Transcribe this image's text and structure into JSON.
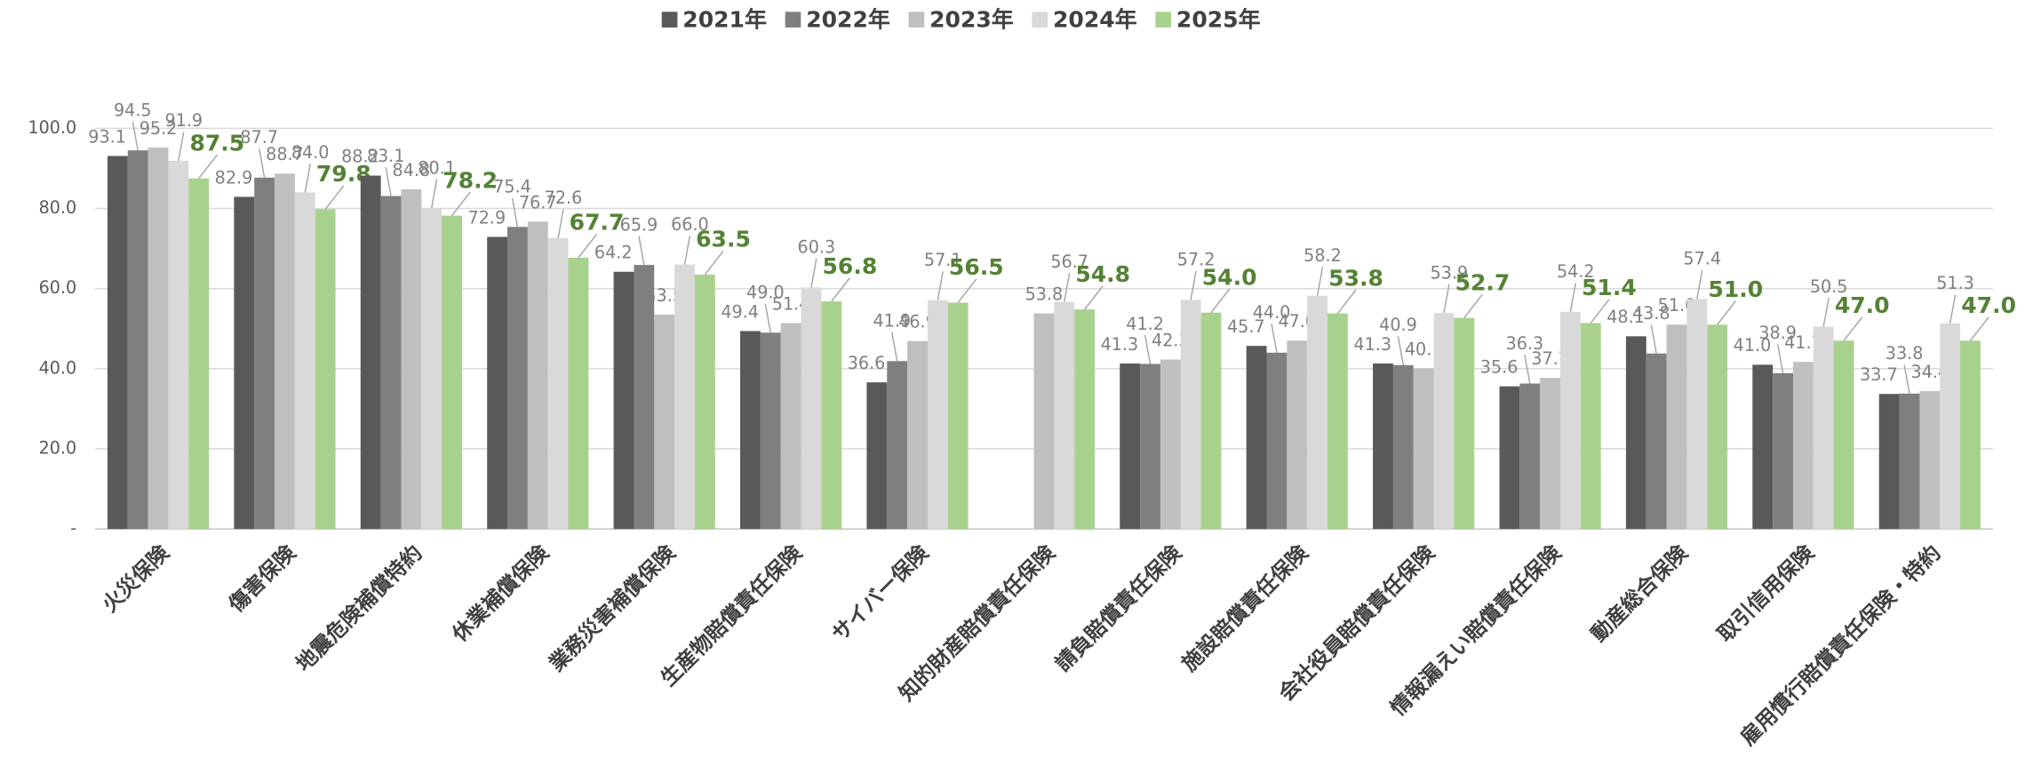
{
  "chart_data": {
    "type": "bar",
    "categories": [
      "火災保険",
      "傷害保険",
      "地震危険補償特約",
      "休業補償保険",
      "業務災害補償保険",
      "生産物賠償責任保険",
      "サイバー保険",
      "知的財産賠償責任保険",
      "請負賠償責任保険",
      "施設賠償責任保険",
      "会社役員賠償責任保険",
      "情報漏えい賠償責任保険",
      "動産総合保険",
      "取引信用保険",
      "雇用慣行賠償責任保険・特約"
    ],
    "series": [
      {
        "name": "2021年",
        "color": "#595959",
        "values": [
          93.1,
          82.9,
          88.2,
          72.9,
          64.2,
          49.4,
          36.6,
          null,
          41.3,
          45.7,
          41.3,
          35.6,
          48.1,
          41.0,
          33.7
        ],
        "value_labels": [
          "93.1",
          "82.9",
          "88.2",
          "72.9",
          "64.2",
          "49.4",
          "36.6",
          null,
          "41.3",
          "45.7",
          "41.3",
          "35.6",
          "48.1",
          "41.0",
          "33.7"
        ]
      },
      {
        "name": "2022年",
        "color": "#7f7f7f",
        "values": [
          94.5,
          87.7,
          83.1,
          75.4,
          65.9,
          49.0,
          41.9,
          null,
          41.2,
          44.0,
          40.9,
          36.3,
          43.8,
          38.9,
          33.8
        ],
        "value_labels": [
          "94.5",
          "87.7",
          "83.1",
          "75.4",
          "65.9",
          "49.0",
          "41.9",
          null,
          "41.2",
          "44.0",
          "40.9",
          "36.3",
          "43.8",
          "38.9",
          "33.8"
        ]
      },
      {
        "name": "2023年",
        "color": "#bfbfbf",
        "values": [
          95.2,
          88.7,
          84.8,
          76.7,
          53.5,
          51.4,
          46.9,
          53.8,
          42.3,
          47.0,
          40.1,
          37.7,
          51.0,
          41.7,
          34.4
        ],
        "value_labels": [
          "95.2",
          "88.7",
          "84.8",
          "76.7",
          "53.5",
          "51.4",
          "46.9",
          "53.8",
          "42.3",
          "47.0",
          "40.1",
          "37.7",
          "51.0",
          "41.7",
          "34.4"
        ]
      },
      {
        "name": "2024年",
        "color": "#d9d9d9",
        "values": [
          91.9,
          84.0,
          80.1,
          72.6,
          66.0,
          60.3,
          57.1,
          56.7,
          57.2,
          58.2,
          53.9,
          54.2,
          57.4,
          50.5,
          51.3
        ],
        "value_labels": [
          "91.9",
          "84.0",
          "80.1",
          "72.6",
          "66.0",
          "60.3",
          "57.1",
          "56.7",
          "57.2",
          "58.2",
          "53.9",
          "54.2",
          "57.4",
          "50.5",
          "51.3"
        ]
      },
      {
        "name": "2025年",
        "color": "#a9d18e",
        "values": [
          87.5,
          79.8,
          78.2,
          67.7,
          63.5,
          56.8,
          56.5,
          54.8,
          54.0,
          53.8,
          52.7,
          51.4,
          51.0,
          47.0,
          47.0
        ],
        "value_labels": [
          "87.5",
          "79.8",
          "78.2",
          "67.7",
          "63.5",
          "56.8",
          "56.5",
          "54.8",
          "54.0",
          "53.8",
          "52.7",
          "51.4",
          "51.0",
          "47.0",
          "47.0"
        ]
      }
    ],
    "ylim": [
      0,
      100
    ],
    "yticks": [
      {
        "value": 0,
        "label": "-"
      },
      {
        "value": 20,
        "label": "20.0"
      },
      {
        "value": 40,
        "label": "40.0"
      },
      {
        "value": 60,
        "label": "60.0"
      },
      {
        "value": 80,
        "label": "80.0"
      },
      {
        "value": 100,
        "label": "100.0"
      }
    ],
    "grid": true,
    "legend": "top"
  }
}
